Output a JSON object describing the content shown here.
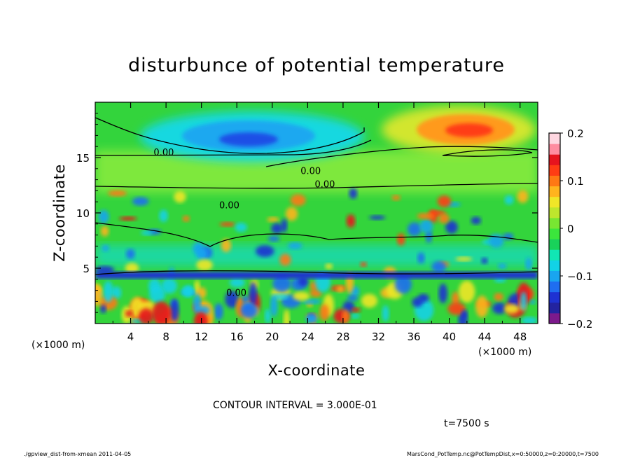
{
  "chart_data": {
    "type": "heatmap",
    "title": "disturbunce of potential temperature",
    "xlabel": "X-coordinate",
    "ylabel": "Z-coordinate",
    "x_unit_label": "(×1000 m)",
    "y_unit_label": "(×1000 m)",
    "xlim": [
      0,
      50
    ],
    "ylim": [
      0,
      20
    ],
    "x_ticks": [
      4,
      8,
      12,
      16,
      20,
      24,
      28,
      32,
      36,
      40,
      44,
      48
    ],
    "y_ticks": [
      5,
      10,
      15
    ],
    "colorbar": {
      "vmin": -0.2,
      "vmax": 0.2,
      "ticks": [
        {
          "value": 0.2,
          "label": "0.2"
        },
        {
          "value": 0.1,
          "label": "0.1"
        },
        {
          "value": 0.0,
          "label": "0"
        },
        {
          "value": -0.1,
          "label": "−0.1"
        },
        {
          "value": -0.2,
          "label": "−0.2"
        }
      ],
      "colors": [
        "#7c1a8c",
        "#2323a0",
        "#1e32d2",
        "#1f6ef0",
        "#19a5f0",
        "#12d2e6",
        "#11e6b4",
        "#19d25a",
        "#3be63c",
        "#78e632",
        "#bee62d",
        "#f0e628",
        "#ffb41e",
        "#ff7814",
        "#ff3c14",
        "#e6141e",
        "#ff8ca0",
        "#ffd7e1"
      ]
    },
    "contour_labels": [
      {
        "text": "0.00",
        "x": 6.6,
        "z": 15.2
      },
      {
        "text": "0.00",
        "x": 23.2,
        "z": 13.5
      },
      {
        "text": "0.00",
        "x": 24.8,
        "z": 12.3
      },
      {
        "text": "0.00",
        "x": 14.0,
        "z": 10.4
      },
      {
        "text": "0.00",
        "x": 14.8,
        "z": 2.5
      }
    ],
    "features": [
      {
        "kind": "negative-max",
        "x": 17.5,
        "z": 16.7,
        "value": -0.1
      },
      {
        "kind": "positive-max",
        "x": 43.5,
        "z": 17.3,
        "value": 0.15
      },
      {
        "kind": "layer",
        "z": 4.3,
        "value": -0.15
      }
    ],
    "contour_interval_label": "CONTOUR INTERVAL = 3.000E-01",
    "time_label": "t=7500 s",
    "footer_left": "./gpview_dist-from-xmean  2011-04-05",
    "footer_right": "MarsCond_PotTemp.nc@PotTempDist,x=0:50000,z=0:20000,t=7500"
  }
}
